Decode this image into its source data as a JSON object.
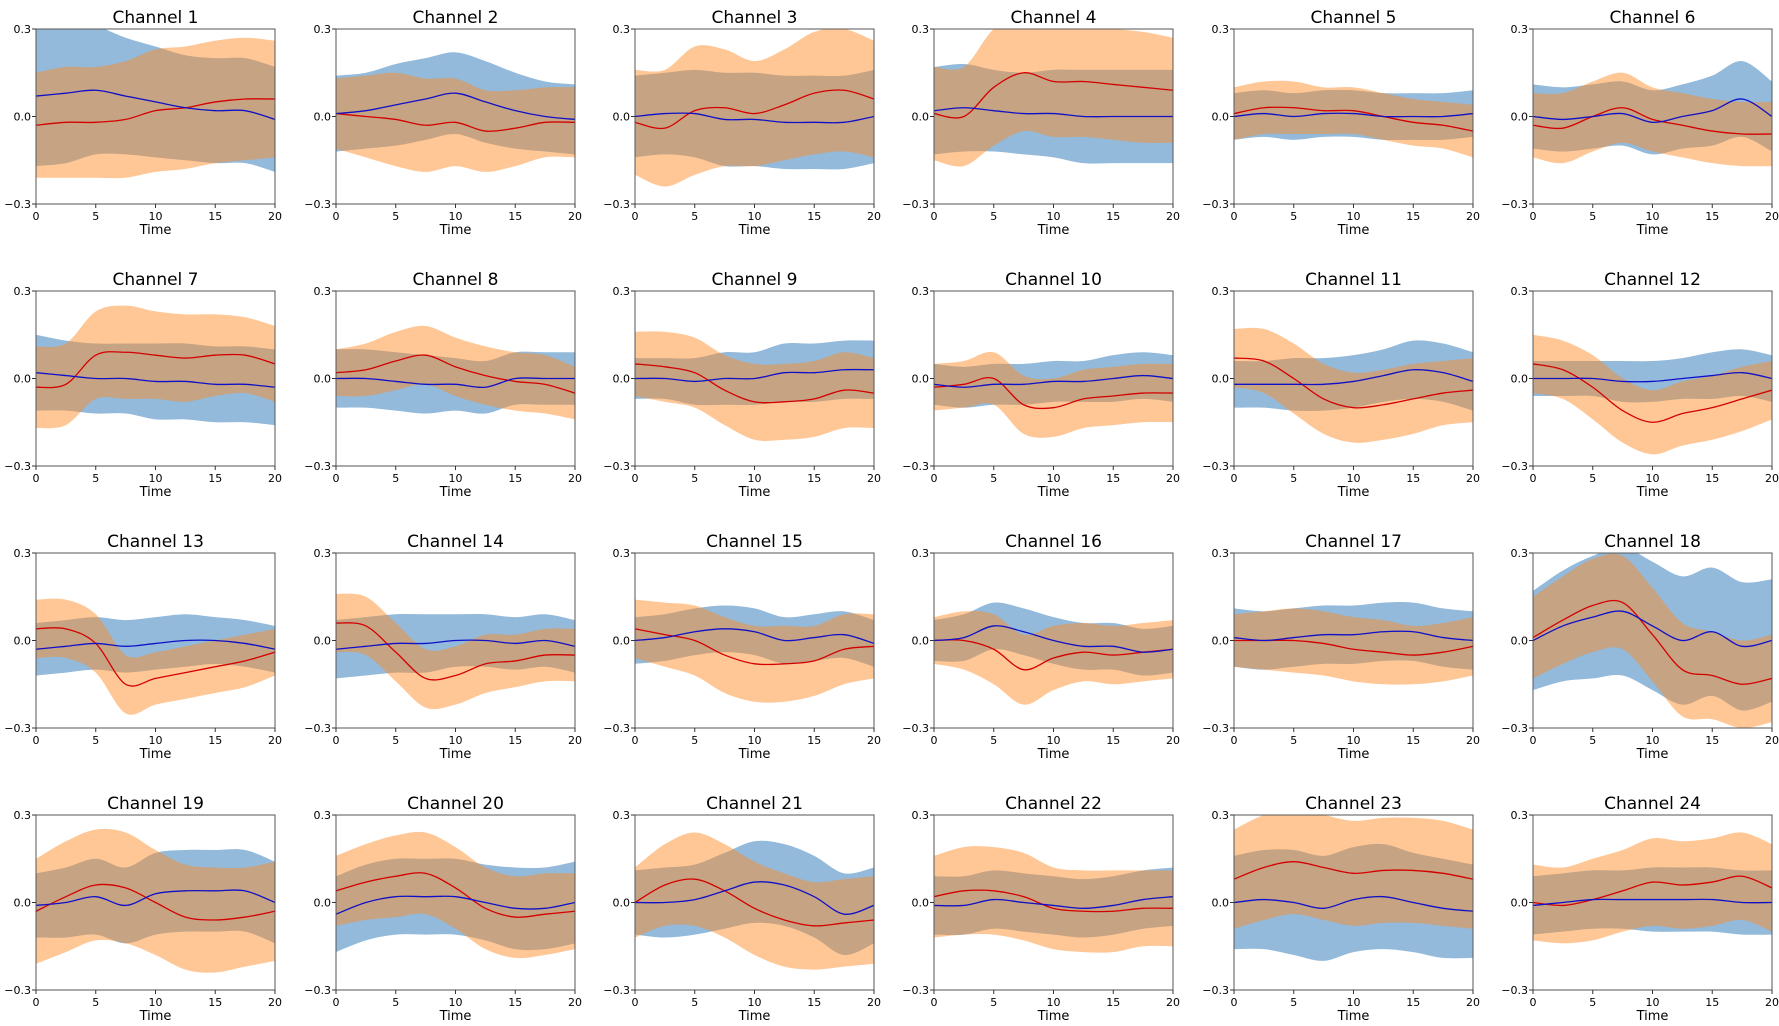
{
  "chart_data": {
    "type": "area",
    "description_layout": "4 x 6 grid of small multiples",
    "xlabel": "Time",
    "xlim": [
      0,
      20
    ],
    "ylim": [
      -0.3,
      0.3
    ],
    "xticks": [
      0,
      5,
      10,
      15,
      20
    ],
    "xtick_labels": [
      "0",
      "5",
      "10",
      "15",
      "20"
    ],
    "ytick_labels": [
      "0.3",
      "0.0",
      "−0.3"
    ],
    "colors": {
      "blue_band": "#3b82bd",
      "orange_band": "#ff8a24",
      "red_line": "#d40000",
      "blue_line": "#1010c8"
    },
    "x": [
      0,
      2.5,
      5,
      7.5,
      10,
      12.5,
      15,
      17.5,
      20
    ],
    "panels": [
      {
        "title": "Channel 1",
        "blue": [
          0.07,
          0.08,
          0.09,
          0.07,
          0.05,
          0.03,
          0.02,
          0.02,
          -0.01
        ],
        "blue_w": [
          0.24,
          0.24,
          0.22,
          0.2,
          0.19,
          0.18,
          0.18,
          0.18,
          0.18
        ],
        "red": [
          -0.03,
          -0.02,
          -0.02,
          -0.01,
          0.02,
          0.03,
          0.05,
          0.06,
          0.06
        ],
        "red_w": [
          0.18,
          0.19,
          0.19,
          0.2,
          0.21,
          0.21,
          0.21,
          0.21,
          0.2
        ]
      },
      {
        "title": "Channel 2",
        "blue": [
          0.01,
          0.02,
          0.04,
          0.06,
          0.08,
          0.05,
          0.02,
          0.0,
          -0.01
        ],
        "blue_w": [
          0.13,
          0.13,
          0.14,
          0.14,
          0.14,
          0.14,
          0.13,
          0.12,
          0.12
        ],
        "red": [
          0.01,
          0.0,
          -0.01,
          -0.03,
          -0.02,
          -0.05,
          -0.04,
          -0.02,
          -0.02
        ],
        "red_w": [
          0.12,
          0.14,
          0.16,
          0.16,
          0.15,
          0.14,
          0.13,
          0.12,
          0.12
        ]
      },
      {
        "title": "Channel 3",
        "blue": [
          0.0,
          0.01,
          0.01,
          -0.01,
          -0.01,
          -0.02,
          -0.02,
          -0.02,
          0.0
        ],
        "blue_w": [
          0.14,
          0.14,
          0.15,
          0.16,
          0.16,
          0.16,
          0.16,
          0.16,
          0.16
        ],
        "red": [
          -0.02,
          -0.04,
          0.02,
          0.03,
          0.01,
          0.04,
          0.08,
          0.09,
          0.06
        ],
        "red_w": [
          0.18,
          0.2,
          0.22,
          0.2,
          0.18,
          0.19,
          0.21,
          0.21,
          0.2
        ]
      },
      {
        "title": "Channel 4",
        "blue": [
          0.02,
          0.03,
          0.02,
          0.01,
          0.01,
          0.0,
          0.0,
          0.0,
          0.0
        ],
        "blue_w": [
          0.15,
          0.15,
          0.14,
          0.14,
          0.15,
          0.16,
          0.16,
          0.16,
          0.16
        ],
        "red": [
          0.01,
          0.0,
          0.1,
          0.15,
          0.12,
          0.12,
          0.11,
          0.1,
          0.09
        ],
        "red_w": [
          0.16,
          0.17,
          0.2,
          0.2,
          0.19,
          0.19,
          0.19,
          0.19,
          0.18
        ]
      },
      {
        "title": "Channel 5",
        "blue": [
          0.0,
          0.01,
          0.0,
          0.01,
          0.01,
          0.0,
          0.0,
          0.0,
          0.01
        ],
        "blue_w": [
          0.08,
          0.08,
          0.08,
          0.08,
          0.08,
          0.08,
          0.08,
          0.08,
          0.08
        ],
        "red": [
          0.01,
          0.03,
          0.03,
          0.02,
          0.02,
          0.0,
          -0.02,
          -0.03,
          -0.05
        ],
        "red_w": [
          0.09,
          0.09,
          0.09,
          0.08,
          0.08,
          0.08,
          0.08,
          0.08,
          0.09
        ]
      },
      {
        "title": "Channel 6",
        "blue": [
          0.0,
          -0.01,
          0.0,
          0.01,
          -0.02,
          0.0,
          0.02,
          0.06,
          0.0
        ],
        "blue_w": [
          0.11,
          0.11,
          0.11,
          0.11,
          0.11,
          0.11,
          0.12,
          0.13,
          0.12
        ],
        "red": [
          -0.03,
          -0.04,
          0.0,
          0.03,
          -0.01,
          -0.03,
          -0.05,
          -0.06,
          -0.06
        ],
        "red_w": [
          0.11,
          0.12,
          0.12,
          0.12,
          0.11,
          0.11,
          0.11,
          0.11,
          0.11
        ]
      },
      {
        "title": "Channel 7",
        "blue": [
          0.02,
          0.01,
          0.0,
          0.0,
          -0.01,
          -0.01,
          -0.02,
          -0.02,
          -0.03
        ],
        "blue_w": [
          0.13,
          0.12,
          0.12,
          0.12,
          0.13,
          0.13,
          0.13,
          0.13,
          0.13
        ],
        "red": [
          -0.03,
          -0.02,
          0.08,
          0.09,
          0.08,
          0.07,
          0.08,
          0.08,
          0.05
        ],
        "red_w": [
          0.14,
          0.14,
          0.15,
          0.16,
          0.15,
          0.15,
          0.14,
          0.13,
          0.13
        ]
      },
      {
        "title": "Channel 8",
        "blue": [
          0.0,
          0.0,
          -0.01,
          -0.02,
          -0.02,
          -0.03,
          0.0,
          0.0,
          0.0
        ],
        "blue_w": [
          0.1,
          0.1,
          0.1,
          0.1,
          0.09,
          0.09,
          0.09,
          0.09,
          0.09
        ],
        "red": [
          0.02,
          0.03,
          0.06,
          0.08,
          0.04,
          0.01,
          -0.01,
          -0.02,
          -0.05
        ],
        "red_w": [
          0.08,
          0.09,
          0.1,
          0.1,
          0.1,
          0.1,
          0.1,
          0.1,
          0.09
        ]
      },
      {
        "title": "Channel 9",
        "blue": [
          0.0,
          0.0,
          -0.01,
          0.0,
          0.0,
          0.02,
          0.02,
          0.03,
          0.03
        ],
        "blue_w": [
          0.07,
          0.07,
          0.08,
          0.09,
          0.09,
          0.1,
          0.1,
          0.1,
          0.1
        ],
        "red": [
          0.05,
          0.04,
          0.02,
          -0.04,
          -0.08,
          -0.08,
          -0.07,
          -0.04,
          -0.05
        ],
        "red_w": [
          0.11,
          0.12,
          0.12,
          0.12,
          0.13,
          0.13,
          0.13,
          0.13,
          0.12
        ]
      },
      {
        "title": "Channel 10",
        "blue": [
          -0.02,
          -0.03,
          -0.02,
          -0.02,
          -0.01,
          -0.01,
          0.0,
          0.01,
          0.0
        ],
        "blue_w": [
          0.07,
          0.07,
          0.07,
          0.07,
          0.07,
          0.07,
          0.08,
          0.08,
          0.08
        ],
        "red": [
          -0.03,
          -0.02,
          0.0,
          -0.09,
          -0.1,
          -0.07,
          -0.06,
          -0.05,
          -0.05
        ],
        "red_w": [
          0.08,
          0.08,
          0.09,
          0.1,
          0.1,
          0.1,
          0.1,
          0.1,
          0.1
        ]
      },
      {
        "title": "Channel 11",
        "blue": [
          -0.02,
          -0.02,
          -0.02,
          -0.02,
          -0.01,
          0.01,
          0.03,
          0.02,
          -0.01
        ],
        "blue_w": [
          0.08,
          0.08,
          0.09,
          0.09,
          0.09,
          0.09,
          0.1,
          0.1,
          0.1
        ],
        "red": [
          0.07,
          0.06,
          0.0,
          -0.07,
          -0.1,
          -0.09,
          -0.07,
          -0.05,
          -0.04
        ],
        "red_w": [
          0.1,
          0.11,
          0.12,
          0.12,
          0.12,
          0.12,
          0.12,
          0.11,
          0.11
        ]
      },
      {
        "title": "Channel 12",
        "blue": [
          0.0,
          0.0,
          0.0,
          -0.01,
          -0.01,
          0.0,
          0.01,
          0.02,
          0.0
        ],
        "blue_w": [
          0.06,
          0.06,
          0.06,
          0.07,
          0.07,
          0.07,
          0.08,
          0.08,
          0.08
        ],
        "red": [
          0.05,
          0.03,
          -0.03,
          -0.11,
          -0.15,
          -0.12,
          -0.1,
          -0.07,
          -0.04
        ],
        "red_w": [
          0.1,
          0.1,
          0.11,
          0.11,
          0.11,
          0.11,
          0.11,
          0.11,
          0.1
        ]
      },
      {
        "title": "Channel 13",
        "blue": [
          -0.03,
          -0.02,
          -0.01,
          -0.02,
          -0.01,
          0.0,
          0.0,
          -0.01,
          -0.03
        ],
        "blue_w": [
          0.09,
          0.09,
          0.09,
          0.09,
          0.09,
          0.09,
          0.08,
          0.08,
          0.08
        ],
        "red": [
          0.04,
          0.04,
          -0.01,
          -0.15,
          -0.13,
          -0.11,
          -0.09,
          -0.07,
          -0.04
        ],
        "red_w": [
          0.1,
          0.1,
          0.1,
          0.1,
          0.09,
          0.09,
          0.09,
          0.09,
          0.08
        ]
      },
      {
        "title": "Channel 14",
        "blue": [
          -0.03,
          -0.02,
          -0.01,
          -0.01,
          0.0,
          0.0,
          -0.01,
          0.0,
          -0.02
        ],
        "blue_w": [
          0.1,
          0.1,
          0.1,
          0.1,
          0.09,
          0.09,
          0.09,
          0.09,
          0.09
        ],
        "red": [
          0.06,
          0.05,
          -0.04,
          -0.13,
          -0.12,
          -0.08,
          -0.07,
          -0.05,
          -0.05
        ],
        "red_w": [
          0.1,
          0.1,
          0.1,
          0.1,
          0.1,
          0.1,
          0.09,
          0.09,
          0.09
        ]
      },
      {
        "title": "Channel 15",
        "blue": [
          0.0,
          0.01,
          0.03,
          0.04,
          0.03,
          0.0,
          0.01,
          0.02,
          -0.01
        ],
        "blue_w": [
          0.08,
          0.08,
          0.08,
          0.08,
          0.08,
          0.08,
          0.08,
          0.08,
          0.08
        ],
        "red": [
          0.04,
          0.02,
          0.0,
          -0.05,
          -0.08,
          -0.08,
          -0.07,
          -0.03,
          -0.02
        ],
        "red_w": [
          0.1,
          0.11,
          0.12,
          0.13,
          0.13,
          0.13,
          0.12,
          0.12,
          0.11
        ]
      },
      {
        "title": "Channel 16",
        "blue": [
          0.0,
          0.01,
          0.05,
          0.03,
          0.0,
          -0.02,
          -0.02,
          -0.04,
          -0.03
        ],
        "blue_w": [
          0.07,
          0.08,
          0.08,
          0.08,
          0.08,
          0.08,
          0.08,
          0.08,
          0.08
        ],
        "red": [
          0.0,
          0.0,
          -0.03,
          -0.1,
          -0.06,
          -0.04,
          -0.05,
          -0.04,
          -0.03
        ],
        "red_w": [
          0.08,
          0.1,
          0.12,
          0.12,
          0.11,
          0.1,
          0.1,
          0.1,
          0.1
        ]
      },
      {
        "title": "Channel 17",
        "blue": [
          0.01,
          0.0,
          0.01,
          0.02,
          0.02,
          0.03,
          0.03,
          0.01,
          0.0
        ],
        "blue_w": [
          0.1,
          0.1,
          0.1,
          0.1,
          0.1,
          0.1,
          0.1,
          0.1,
          0.1
        ],
        "red": [
          0.0,
          0.0,
          0.0,
          -0.01,
          -0.03,
          -0.04,
          -0.05,
          -0.04,
          -0.02
        ],
        "red_w": [
          0.09,
          0.1,
          0.11,
          0.11,
          0.11,
          0.11,
          0.1,
          0.1,
          0.1
        ]
      },
      {
        "title": "Channel 18",
        "blue": [
          0.0,
          0.05,
          0.08,
          0.1,
          0.05,
          0.0,
          0.03,
          -0.02,
          0.0
        ],
        "blue_w": [
          0.17,
          0.19,
          0.21,
          0.22,
          0.22,
          0.22,
          0.22,
          0.22,
          0.21
        ],
        "red": [
          0.01,
          0.07,
          0.12,
          0.13,
          0.02,
          -0.1,
          -0.12,
          -0.15,
          -0.13
        ],
        "red_w": [
          0.14,
          0.15,
          0.16,
          0.16,
          0.16,
          0.16,
          0.15,
          0.15,
          0.15
        ]
      },
      {
        "title": "Channel 19",
        "blue": [
          -0.01,
          0.0,
          0.02,
          -0.01,
          0.03,
          0.04,
          0.04,
          0.04,
          0.0
        ],
        "blue_w": [
          0.11,
          0.12,
          0.13,
          0.13,
          0.14,
          0.14,
          0.14,
          0.14,
          0.14
        ],
        "red": [
          -0.03,
          0.02,
          0.06,
          0.05,
          0.0,
          -0.05,
          -0.06,
          -0.05,
          -0.03
        ],
        "red_w": [
          0.18,
          0.19,
          0.19,
          0.19,
          0.18,
          0.18,
          0.18,
          0.17,
          0.17
        ]
      },
      {
        "title": "Channel 20",
        "blue": [
          -0.04,
          0.0,
          0.02,
          0.02,
          0.02,
          0.0,
          -0.02,
          -0.02,
          0.0
        ],
        "blue_w": [
          0.13,
          0.13,
          0.13,
          0.13,
          0.13,
          0.13,
          0.14,
          0.14,
          0.14
        ],
        "red": [
          0.04,
          0.07,
          0.09,
          0.1,
          0.05,
          -0.02,
          -0.05,
          -0.04,
          -0.03
        ],
        "red_w": [
          0.12,
          0.13,
          0.14,
          0.14,
          0.14,
          0.14,
          0.14,
          0.14,
          0.13
        ]
      },
      {
        "title": "Channel 21",
        "blue": [
          0.0,
          0.0,
          0.01,
          0.04,
          0.07,
          0.06,
          0.02,
          -0.04,
          -0.01
        ],
        "blue_w": [
          0.11,
          0.12,
          0.12,
          0.13,
          0.14,
          0.14,
          0.14,
          0.14,
          0.13
        ],
        "red": [
          0.0,
          0.06,
          0.08,
          0.04,
          -0.02,
          -0.06,
          -0.08,
          -0.07,
          -0.06
        ],
        "red_w": [
          0.12,
          0.14,
          0.16,
          0.16,
          0.16,
          0.16,
          0.15,
          0.15,
          0.15
        ]
      },
      {
        "title": "Channel 22",
        "blue": [
          -0.01,
          -0.01,
          0.01,
          0.0,
          -0.01,
          -0.02,
          -0.01,
          0.01,
          0.02
        ],
        "blue_w": [
          0.1,
          0.1,
          0.1,
          0.1,
          0.1,
          0.1,
          0.1,
          0.1,
          0.1
        ],
        "red": [
          0.02,
          0.04,
          0.04,
          0.02,
          -0.02,
          -0.03,
          -0.03,
          -0.02,
          -0.02
        ],
        "red_w": [
          0.14,
          0.15,
          0.15,
          0.15,
          0.14,
          0.14,
          0.14,
          0.13,
          0.13
        ]
      },
      {
        "title": "Channel 23",
        "blue": [
          0.0,
          0.01,
          0.0,
          -0.02,
          0.01,
          0.02,
          0.0,
          -0.02,
          -0.03
        ],
        "blue_w": [
          0.16,
          0.17,
          0.18,
          0.18,
          0.18,
          0.18,
          0.17,
          0.17,
          0.16
        ],
        "red": [
          0.08,
          0.12,
          0.14,
          0.12,
          0.1,
          0.11,
          0.11,
          0.1,
          0.08
        ],
        "red_w": [
          0.17,
          0.18,
          0.18,
          0.18,
          0.18,
          0.18,
          0.18,
          0.18,
          0.17
        ]
      },
      {
        "title": "Channel 24",
        "blue": [
          -0.01,
          0.0,
          0.01,
          0.01,
          0.01,
          0.01,
          0.01,
          0.0,
          0.0
        ],
        "blue_w": [
          0.1,
          0.1,
          0.1,
          0.1,
          0.11,
          0.11,
          0.11,
          0.11,
          0.11
        ],
        "red": [
          0.0,
          -0.01,
          0.01,
          0.04,
          0.07,
          0.06,
          0.07,
          0.09,
          0.05
        ],
        "red_w": [
          0.13,
          0.13,
          0.14,
          0.14,
          0.15,
          0.15,
          0.15,
          0.15,
          0.15
        ]
      }
    ]
  }
}
